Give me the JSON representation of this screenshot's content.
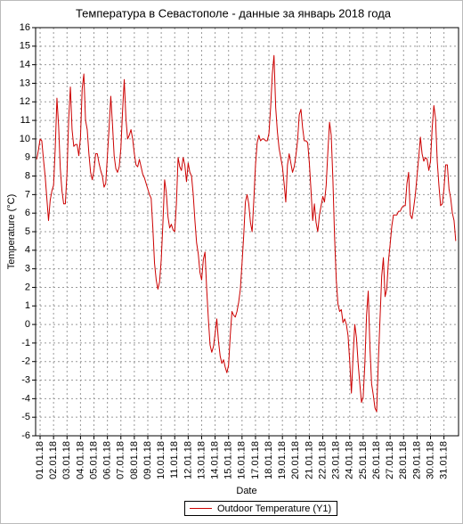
{
  "chart_data": {
    "type": "line",
    "title": "Температура в Севастополе - данные за январь 2018 года",
    "x_label": "Date",
    "y_label": "Temperature (°C)",
    "grid": true,
    "legend": "bottom",
    "x": [
      -6,
      -3,
      0,
      3,
      6,
      9,
      12,
      15,
      18,
      21,
      24,
      27,
      30,
      33,
      36,
      39,
      42,
      45,
      48,
      51,
      54,
      57,
      60,
      63,
      66,
      69,
      72,
      75,
      78,
      81,
      84,
      87,
      90,
      93,
      96,
      99,
      102,
      105,
      108,
      111,
      114,
      117,
      120,
      123,
      126,
      129,
      132,
      135,
      138,
      141,
      144,
      147,
      150,
      153,
      156,
      159,
      162,
      165,
      168,
      171,
      174,
      177,
      180,
      183,
      186,
      189,
      192,
      195,
      198,
      201,
      204,
      207,
      210,
      213,
      216,
      219,
      222,
      225,
      228,
      231,
      234,
      237,
      240,
      243,
      246,
      249,
      252,
      255,
      258,
      261,
      264,
      267,
      270,
      273,
      276,
      279,
      282,
      285,
      288,
      291,
      294,
      297,
      300,
      303,
      306,
      309,
      312,
      315,
      318,
      321,
      324,
      327,
      330,
      333,
      336,
      339,
      342,
      345,
      348,
      351,
      354,
      357,
      360,
      363,
      366,
      369,
      372,
      375,
      378,
      381,
      384,
      387,
      390,
      393,
      396,
      399,
      402,
      405,
      408,
      411,
      414,
      417,
      420,
      423,
      426,
      429,
      432,
      435,
      438,
      441,
      444,
      447,
      450,
      453,
      456,
      459,
      462,
      465,
      468,
      471,
      474,
      477,
      480,
      483,
      486,
      489,
      492,
      495,
      498,
      501,
      504,
      507,
      510,
      513,
      516,
      519,
      522,
      525,
      528,
      531,
      534,
      537,
      540,
      543,
      546,
      549,
      552,
      555,
      558,
      561,
      564,
      567,
      570,
      573,
      576,
      579,
      582,
      585,
      588,
      591,
      594,
      597,
      600,
      603,
      606,
      609,
      612,
      615,
      618,
      621,
      624,
      627,
      630,
      633,
      636,
      639,
      642,
      645,
      648,
      651,
      654,
      657,
      660,
      663,
      666,
      669,
      672,
      675,
      678,
      681,
      684,
      687,
      690,
      693,
      696,
      699,
      702,
      705,
      708,
      711,
      714,
      717,
      720,
      723,
      726,
      729,
      732,
      735,
      738,
      741
    ],
    "series": [
      {
        "name": "Outdoor Temperature (Y1)",
        "color": "#cc0000",
        "values": [
          8.9,
          9.4,
          10.0,
          9.9,
          8.9,
          8.0,
          6.8,
          5.6,
          6.7,
          7.2,
          7.5,
          9.5,
          12.2,
          10.7,
          8.4,
          7.2,
          6.5,
          6.5,
          8.2,
          11.1,
          12.8,
          10.5,
          9.6,
          9.7,
          9.7,
          9.1,
          10.1,
          12.7,
          13.5,
          11.0,
          10.5,
          9.2,
          8.2,
          7.8,
          8.3,
          9.2,
          9.2,
          8.7,
          8.3,
          8.0,
          7.4,
          7.6,
          9.1,
          10.6,
          12.3,
          10.8,
          9.1,
          8.4,
          8.2,
          8.5,
          9.5,
          11.5,
          13.2,
          11.1,
          10.0,
          10.2,
          10.5,
          10.0,
          9.2,
          8.6,
          8.5,
          8.9,
          8.5,
          8.1,
          7.9,
          7.6,
          7.3,
          7.0,
          6.8,
          5.2,
          3.3,
          2.4,
          1.9,
          2.3,
          3.5,
          5.5,
          7.8,
          7.1,
          5.8,
          5.2,
          5.4,
          5.1,
          5.0,
          6.5,
          9.0,
          8.5,
          8.3,
          9.0,
          8.6,
          7.7,
          8.7,
          8.2,
          8.0,
          7.0,
          5.6,
          4.4,
          3.8,
          2.8,
          2.4,
          3.5,
          3.9,
          1.9,
          0.3,
          -1.1,
          -1.5,
          -1.2,
          -0.5,
          0.3,
          -0.9,
          -1.7,
          -2.1,
          -1.9,
          -2.3,
          -2.6,
          -2.2,
          -0.6,
          0.7,
          0.5,
          0.4,
          0.7,
          1.2,
          1.9,
          3.3,
          4.8,
          6.6,
          7.0,
          6.5,
          5.5,
          5.0,
          6.7,
          8.6,
          9.8,
          10.2,
          9.9,
          10.0,
          10.0,
          9.9,
          9.9,
          10.3,
          11.7,
          13.5,
          14.5,
          11.7,
          10.4,
          9.5,
          9.0,
          8.5,
          7.6,
          6.6,
          8.6,
          9.2,
          8.7,
          8.2,
          8.5,
          9.1,
          9.9,
          11.3,
          11.6,
          10.6,
          9.9,
          9.9,
          9.8,
          8.7,
          7.2,
          5.6,
          6.5,
          5.5,
          5.0,
          5.9,
          6.4,
          6.9,
          6.6,
          7.5,
          9.3,
          10.9,
          10.2,
          7.8,
          4.7,
          2.4,
          1.1,
          0.7,
          0.8,
          0.1,
          0.3,
          0.0,
          -0.6,
          -2.0,
          -3.7,
          -1.7,
          0.0,
          -0.7,
          -2.1,
          -3.2,
          -4.2,
          -3.9,
          -2.1,
          0.5,
          1.8,
          -1.2,
          -3.2,
          -3.8,
          -4.5,
          -4.7,
          -2.0,
          0.3,
          2.6,
          3.6,
          1.5,
          1.9,
          3.4,
          4.3,
          5.3,
          5.9,
          5.9,
          5.9,
          6.1,
          6.1,
          6.3,
          6.4,
          6.4,
          7.6,
          8.2,
          5.9,
          5.7,
          6.3,
          7.0,
          8.0,
          9.0,
          10.1,
          9.2,
          8.8,
          9.0,
          8.9,
          8.3,
          8.8,
          10.6,
          11.8,
          11.1,
          8.8,
          7.5,
          6.4,
          6.5,
          7.3,
          8.6,
          8.6,
          7.3,
          6.8,
          6.0,
          5.6,
          4.5
        ]
      }
    ],
    "xlim": [
      -8,
      746
    ],
    "xticks": [
      {
        "value": 0,
        "label": "01.01.18"
      },
      {
        "value": 24,
        "label": "02.01.18"
      },
      {
        "value": 48,
        "label": "03.01.18"
      },
      {
        "value": 72,
        "label": "04.01.18"
      },
      {
        "value": 96,
        "label": "05.01.18"
      },
      {
        "value": 120,
        "label": "06.01.18"
      },
      {
        "value": 144,
        "label": "07.01.18"
      },
      {
        "value": 168,
        "label": "08.01.18"
      },
      {
        "value": 192,
        "label": "09.01.18"
      },
      {
        "value": 216,
        "label": "10.01.18"
      },
      {
        "value": 240,
        "label": "11.01.18"
      },
      {
        "value": 264,
        "label": "12.01.18"
      },
      {
        "value": 288,
        "label": "13.01.18"
      },
      {
        "value": 312,
        "label": "14.01.18"
      },
      {
        "value": 336,
        "label": "15.01.18"
      },
      {
        "value": 360,
        "label": "16.01.18"
      },
      {
        "value": 384,
        "label": "17.01.18"
      },
      {
        "value": 408,
        "label": "18.01.18"
      },
      {
        "value": 432,
        "label": "19.01.18"
      },
      {
        "value": 456,
        "label": "20.01.18"
      },
      {
        "value": 480,
        "label": "21.01.18"
      },
      {
        "value": 504,
        "label": "22.01.18"
      },
      {
        "value": 528,
        "label": "23.01.18"
      },
      {
        "value": 552,
        "label": "24.01.18"
      },
      {
        "value": 576,
        "label": "25.01.18"
      },
      {
        "value": 600,
        "label": "26.01.18"
      },
      {
        "value": 624,
        "label": "27.01.18"
      },
      {
        "value": 648,
        "label": "28.01.18"
      },
      {
        "value": 672,
        "label": "29.01.18"
      },
      {
        "value": 696,
        "label": "30.01.18"
      },
      {
        "value": 720,
        "label": "31.01.18"
      }
    ],
    "ylim": [
      -6,
      16
    ],
    "yticks": [
      -6,
      -5,
      -4,
      -3,
      -2,
      -1,
      0,
      1,
      2,
      3,
      4,
      5,
      6,
      7,
      8,
      9,
      10,
      11,
      12,
      13,
      14,
      15,
      16
    ]
  }
}
